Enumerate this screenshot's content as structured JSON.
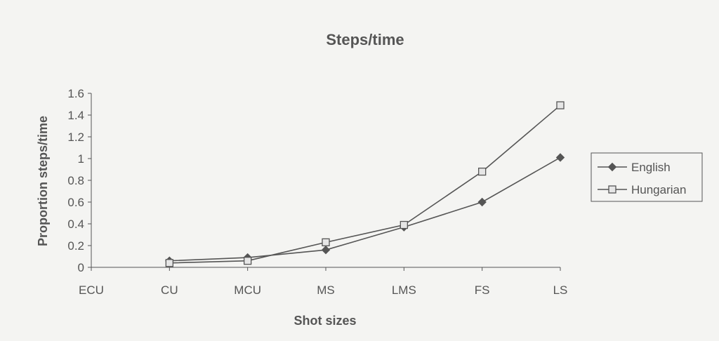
{
  "chart_data": {
    "type": "line",
    "title": "Steps/time",
    "xlabel": "Shot sizes",
    "ylabel": "Proportion steps/time",
    "categories": [
      "ECU",
      "CU",
      "MCU",
      "MS",
      "LMS",
      "FS",
      "LS"
    ],
    "ylim": [
      0,
      1.6
    ],
    "yticks": [
      "0",
      "0.2",
      "0.4",
      "0.6",
      "0.8",
      "1",
      "1.2",
      "1.4",
      "1.6"
    ],
    "grid": false,
    "legend_position": "right",
    "series": [
      {
        "name": "English",
        "marker": "diamond",
        "color": "#555555",
        "values": [
          null,
          0.06,
          0.09,
          0.16,
          0.37,
          0.6,
          1.01
        ]
      },
      {
        "name": "Hungarian",
        "marker": "square",
        "color": "#555555",
        "values": [
          null,
          0.04,
          0.06,
          0.23,
          0.39,
          0.88,
          1.49
        ]
      }
    ]
  }
}
